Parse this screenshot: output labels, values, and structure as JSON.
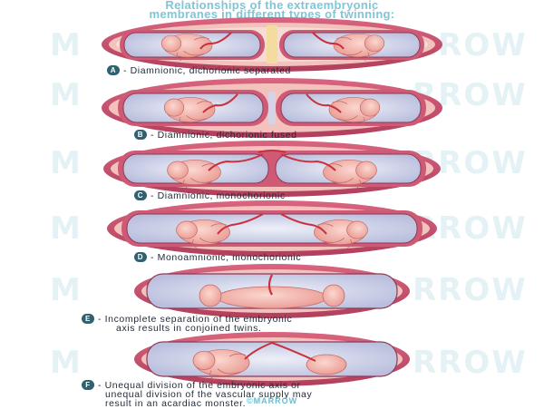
{
  "title": {
    "line1": "Relationships of the extraembryonic",
    "line2": "membranes in different types of twinning:"
  },
  "captions": [
    {
      "letter": "A",
      "text": "- Diamnionic, dichorionic separated"
    },
    {
      "letter": "B",
      "text": "- Diamnionic, dichorionic fused"
    },
    {
      "letter": "C",
      "text": "- Diamnionic, monochorionic"
    },
    {
      "letter": "D",
      "text": "- Monoamnionic, monochorionic"
    },
    {
      "letter": "E",
      "text": "- Incomplete separation of the embryonic",
      "text2": "axis results in conjoined twins."
    },
    {
      "letter": "F",
      "text": "- Unequal division of the embryonic axis or",
      "text2": "unequal division of the vascular supply may",
      "text3": "result in an acardiac monster."
    }
  ],
  "watermark": {
    "left": "M",
    "right": "RROW"
  },
  "footer": "©MARROW",
  "colors": {
    "title": "#7fc6d6",
    "badge": "#2f6170",
    "uterine_wall": "#c4506f",
    "decidua": "#f3c2bd",
    "amnion_fluid": "#c8cde6",
    "embryo": "#f3b7ae",
    "vessel": "#c9303d"
  }
}
